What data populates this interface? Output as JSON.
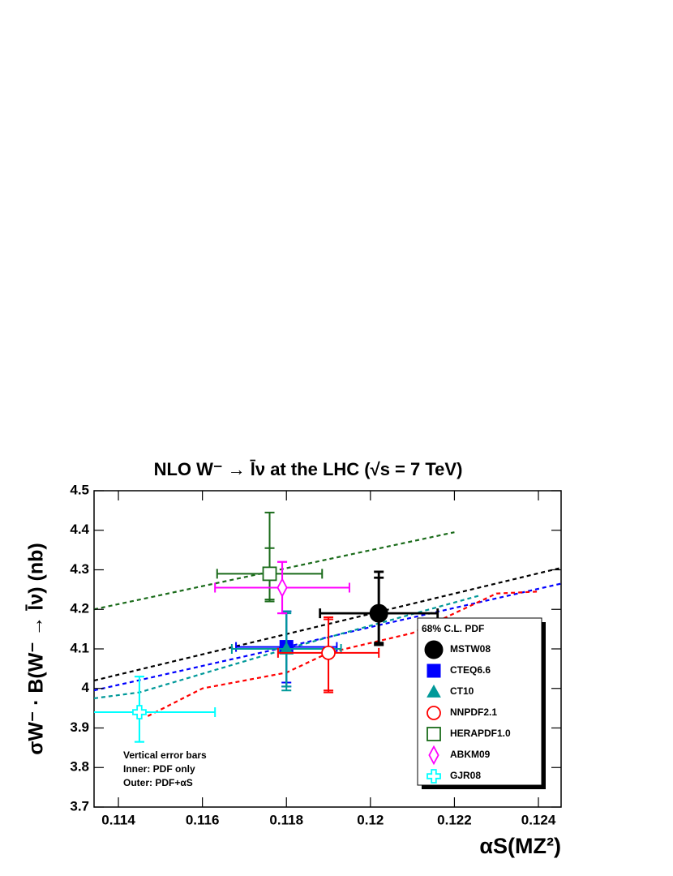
{
  "chart_data": {
    "type": "scatter",
    "title": "NLO W⁻ → l̄ν at the LHC (√s = 7 TeV)",
    "x_label": "αS(MZ²)",
    "y_label": "σW⁻ · B(W⁻ → l̄ν)  (nb)",
    "xlim": [
      0.11342,
      0.12454
    ],
    "ylim": [
      3.7,
      4.5
    ],
    "xticks": [
      0.114,
      0.116,
      0.118,
      0.12,
      0.122,
      0.124
    ],
    "yticks": [
      3.7,
      3.8,
      3.9,
      4,
      4.1,
      4.2,
      4.3,
      4.4,
      4.5
    ],
    "grid": false,
    "line_style": "dashed",
    "legend_title": "68% C.L. PDF",
    "legend_position": "right",
    "annotations": [
      "Vertical error bars",
      "Inner: PDF only",
      "Outer: PDF+αS"
    ],
    "series": [
      {
        "name": "MSTW08",
        "color": "#000000",
        "marker": "filled-circle",
        "x": 0.1202,
        "y": 4.19,
        "xerr": 0.0014,
        "yerr_inner": [
          0.075,
          0.09
        ],
        "yerr_outer": [
          0.08,
          0.105
        ],
        "curve": {
          "x": [
            0.11342,
            0.12454
          ],
          "y": [
            4.02,
            4.305
          ]
        }
      },
      {
        "name": "CTEQ6.6",
        "color": "#0000ff",
        "marker": "filled-square",
        "x": 0.118,
        "y": 4.105,
        "xerr": 0.0012,
        "yerr_inner": [
          0.09,
          0.09
        ],
        "yerr_outer": [
          0.1,
          0.09
        ],
        "curve": {
          "x": [
            0.11342,
            0.118,
            0.1202,
            0.12454
          ],
          "y": [
            3.995,
            4.105,
            4.16,
            4.265
          ]
        }
      },
      {
        "name": "CT10",
        "color": "#009999",
        "marker": "filled-triangle",
        "x": 0.118,
        "y": 4.1,
        "xerr": 0.0013,
        "yerr_inner": [
          0.095,
          0.09
        ],
        "yerr_outer": [
          0.105,
          0.095
        ],
        "curve": {
          "x": [
            0.11342,
            0.1145,
            0.118,
            0.1226
          ],
          "y": [
            3.975,
            3.99,
            4.1,
            4.235
          ]
        }
      },
      {
        "name": "NNPDF2.1",
        "color": "#ff0000",
        "marker": "open-circle",
        "x": 0.119,
        "y": 4.09,
        "xerr": 0.0012,
        "yerr_inner": [
          0.095,
          0.085
        ],
        "yerr_outer": [
          0.1,
          0.09
        ],
        "curve": {
          "x": [
            0.1147,
            0.116,
            0.118,
            0.119,
            0.12,
            0.121,
            0.122,
            0.123,
            0.124
          ],
          "y": [
            3.93,
            4.0,
            4.04,
            4.09,
            4.115,
            4.14,
            4.19,
            4.24,
            4.245
          ]
        }
      },
      {
        "name": "HERAPDF1.0",
        "color": "#1a6b1a",
        "marker": "open-square",
        "x": 0.1176,
        "y": 4.29,
        "xerr": 0.00125,
        "yerr_inner": [
          0.065,
          0.065
        ],
        "yerr_outer": [
          0.07,
          0.155
        ],
        "curve": {
          "x": [
            0.11342,
            0.122
          ],
          "y": [
            4.2,
            4.395
          ]
        }
      },
      {
        "name": "ABKM09",
        "color": "#ff00ff",
        "marker": "open-diamond",
        "x": 0.1179,
        "y": 4.255,
        "xerr": 0.0016,
        "yerr_inner": [
          0.065,
          0.065
        ],
        "yerr_outer": [
          0.065,
          0.065
        ]
      },
      {
        "name": "GJR08",
        "color": "#00ffff",
        "marker": "open-cross",
        "x": 0.1145,
        "y": 3.94,
        "xerr": 0.0018,
        "yerr_inner": [
          0.075,
          0.09
        ],
        "yerr_outer": [
          0.075,
          0.09
        ]
      }
    ]
  }
}
